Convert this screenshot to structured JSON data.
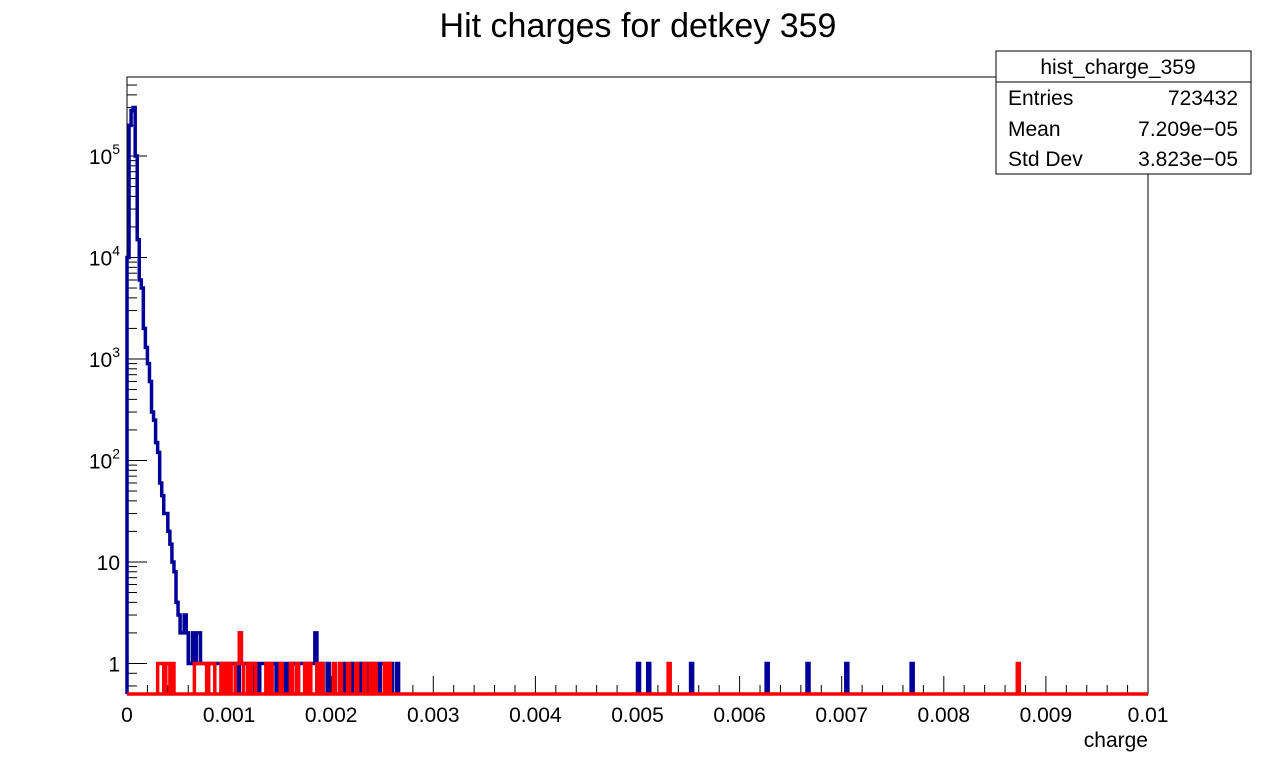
{
  "chart_data": {
    "type": "histogram",
    "title": "Hit charges for detkey 359",
    "xlabel": "charge",
    "ylabel": "",
    "xlim": [
      0,
      0.01
    ],
    "ylim": [
      0.5,
      600000
    ],
    "yscale": "log",
    "x_ticks": [
      "0",
      "0.001",
      "0.002",
      "0.003",
      "0.004",
      "0.005",
      "0.006",
      "0.007",
      "0.008",
      "0.009",
      "0.01"
    ],
    "y_ticks": [
      {
        "value": 1,
        "label": "1",
        "base": "1",
        "exp": ""
      },
      {
        "value": 10,
        "label": "10",
        "base": "10",
        "exp": ""
      },
      {
        "value": 100,
        "label": "10^2",
        "base": "10",
        "exp": "2"
      },
      {
        "value": 1000,
        "label": "10^3",
        "base": "10",
        "exp": "3"
      },
      {
        "value": 10000,
        "label": "10^4",
        "base": "10",
        "exp": "4"
      },
      {
        "value": 100000,
        "label": "10^5",
        "base": "10",
        "exp": "5"
      }
    ],
    "bin_width": 2e-05,
    "stats_box": {
      "name": "hist_charge_359",
      "rows": [
        {
          "label": "Entries",
          "value": "723432"
        },
        {
          "label": "Mean",
          "value": "7.209e−05"
        },
        {
          "label": "Std Dev",
          "value": "3.823e−05"
        }
      ]
    },
    "series": [
      {
        "color": "#000099",
        "bins": [
          [
            0.0,
            10000
          ],
          [
            2e-05,
            200000
          ],
          [
            4e-05,
            280000
          ],
          [
            6e-05,
            300000
          ],
          [
            8e-05,
            100000
          ],
          [
            0.0001,
            15000
          ],
          [
            0.00012,
            6000
          ],
          [
            0.00014,
            5000
          ],
          [
            0.00016,
            2000
          ],
          [
            0.00018,
            1300
          ],
          [
            0.0002,
            900
          ],
          [
            0.00022,
            600
          ],
          [
            0.00024,
            300
          ],
          [
            0.00026,
            250
          ],
          [
            0.00028,
            150
          ],
          [
            0.0003,
            120
          ],
          [
            0.00032,
            60
          ],
          [
            0.00034,
            45
          ],
          [
            0.00036,
            30
          ],
          [
            0.00038,
            30
          ],
          [
            0.0004,
            20
          ],
          [
            0.00042,
            15
          ],
          [
            0.00044,
            10
          ],
          [
            0.00046,
            8
          ],
          [
            0.00048,
            4
          ],
          [
            0.0005,
            3
          ],
          [
            0.00052,
            2
          ],
          [
            0.00054,
            2
          ],
          [
            0.00056,
            3
          ],
          [
            0.00058,
            2
          ],
          [
            0.0006,
            1
          ],
          [
            0.00062,
            1
          ],
          [
            0.00064,
            2
          ],
          [
            0.00066,
            1
          ],
          [
            0.00068,
            2
          ],
          [
            0.0007,
            2
          ],
          [
            0.00072,
            1
          ],
          [
            0.00074,
            1
          ],
          [
            0.00076,
            1
          ],
          [
            0.00078,
            1
          ],
          [
            0.0008,
            1
          ],
          [
            0.00082,
            1
          ],
          [
            0.00084,
            1
          ],
          [
            0.00086,
            1
          ],
          [
            0.00088,
            1
          ],
          [
            0.0009,
            1
          ],
          [
            0.00092,
            1
          ],
          [
            0.00094,
            1
          ],
          [
            0.00096,
            1
          ],
          [
            0.00098,
            1
          ],
          [
            0.001,
            1
          ],
          [
            0.00102,
            1
          ],
          [
            0.00104,
            1
          ],
          [
            0.00106,
            1
          ],
          [
            0.0011,
            2
          ],
          [
            0.00112,
            1
          ],
          [
            0.00114,
            1
          ],
          [
            0.00116,
            1
          ],
          [
            0.00118,
            1
          ],
          [
            0.0012,
            1
          ],
          [
            0.00122,
            1
          ],
          [
            0.00126,
            1
          ],
          [
            0.0013,
            1
          ],
          [
            0.00132,
            1
          ],
          [
            0.00134,
            1
          ],
          [
            0.00136,
            1
          ],
          [
            0.00142,
            1
          ],
          [
            0.00144,
            1
          ],
          [
            0.00148,
            1
          ],
          [
            0.0015,
            1
          ],
          [
            0.00152,
            1
          ],
          [
            0.00156,
            1
          ],
          [
            0.0016,
            1
          ],
          [
            0.00162,
            1
          ],
          [
            0.00164,
            1
          ],
          [
            0.00168,
            1
          ],
          [
            0.0017,
            1
          ],
          [
            0.00172,
            1
          ],
          [
            0.00174,
            1
          ],
          [
            0.00176,
            1
          ],
          [
            0.0018,
            1
          ],
          [
            0.00182,
            1
          ],
          [
            0.00184,
            2
          ],
          [
            0.0019,
            1
          ],
          [
            0.00196,
            1
          ],
          [
            0.00212,
            1
          ],
          [
            0.0022,
            1
          ],
          [
            0.00226,
            1
          ],
          [
            0.0023,
            1
          ],
          [
            0.00234,
            1
          ],
          [
            0.0024,
            1
          ],
          [
            0.00244,
            1
          ],
          [
            0.00248,
            1
          ],
          [
            0.0025,
            1
          ],
          [
            0.00252,
            1
          ],
          [
            0.00254,
            1
          ],
          [
            0.00258,
            1
          ],
          [
            0.00264,
            1
          ],
          [
            0.005,
            1
          ],
          [
            0.0051,
            1
          ],
          [
            0.00552,
            1
          ],
          [
            0.00626,
            1
          ],
          [
            0.00666,
            1
          ],
          [
            0.00704,
            1
          ],
          [
            0.00768,
            1
          ]
        ]
      },
      {
        "color": "#ff0000",
        "bins": [
          [
            0.0003,
            1
          ],
          [
            0.00032,
            1
          ],
          [
            0.00034,
            1
          ],
          [
            0.00038,
            1
          ],
          [
            0.0004,
            1
          ],
          [
            0.00044,
            1
          ],
          [
            0.00066,
            1
          ],
          [
            0.00068,
            1
          ],
          [
            0.0007,
            1
          ],
          [
            0.00072,
            1
          ],
          [
            0.00074,
            1
          ],
          [
            0.00076,
            1
          ],
          [
            0.0008,
            1
          ],
          [
            0.00082,
            1
          ],
          [
            0.00084,
            1
          ],
          [
            0.00092,
            1
          ],
          [
            0.00096,
            1
          ],
          [
            0.001,
            1
          ],
          [
            0.00106,
            1
          ],
          [
            0.00108,
            1
          ],
          [
            0.0011,
            2
          ],
          [
            0.00112,
            1
          ],
          [
            0.00118,
            1
          ],
          [
            0.00122,
            1
          ],
          [
            0.00124,
            1
          ],
          [
            0.00136,
            1
          ],
          [
            0.0014,
            1
          ],
          [
            0.0015,
            1
          ],
          [
            0.0016,
            1
          ],
          [
            0.00166,
            1
          ],
          [
            0.00174,
            1
          ],
          [
            0.00178,
            1
          ],
          [
            0.00186,
            1
          ],
          [
            0.0019,
            1
          ],
          [
            0.00202,
            1
          ],
          [
            0.00208,
            1
          ],
          [
            0.00216,
            1
          ],
          [
            0.00224,
            1
          ],
          [
            0.00232,
            1
          ],
          [
            0.00238,
            1
          ],
          [
            0.00242,
            1
          ],
          [
            0.00252,
            1
          ],
          [
            0.00256,
            1
          ],
          [
            0.0053,
            1
          ],
          [
            0.00872,
            1
          ]
        ]
      }
    ]
  }
}
